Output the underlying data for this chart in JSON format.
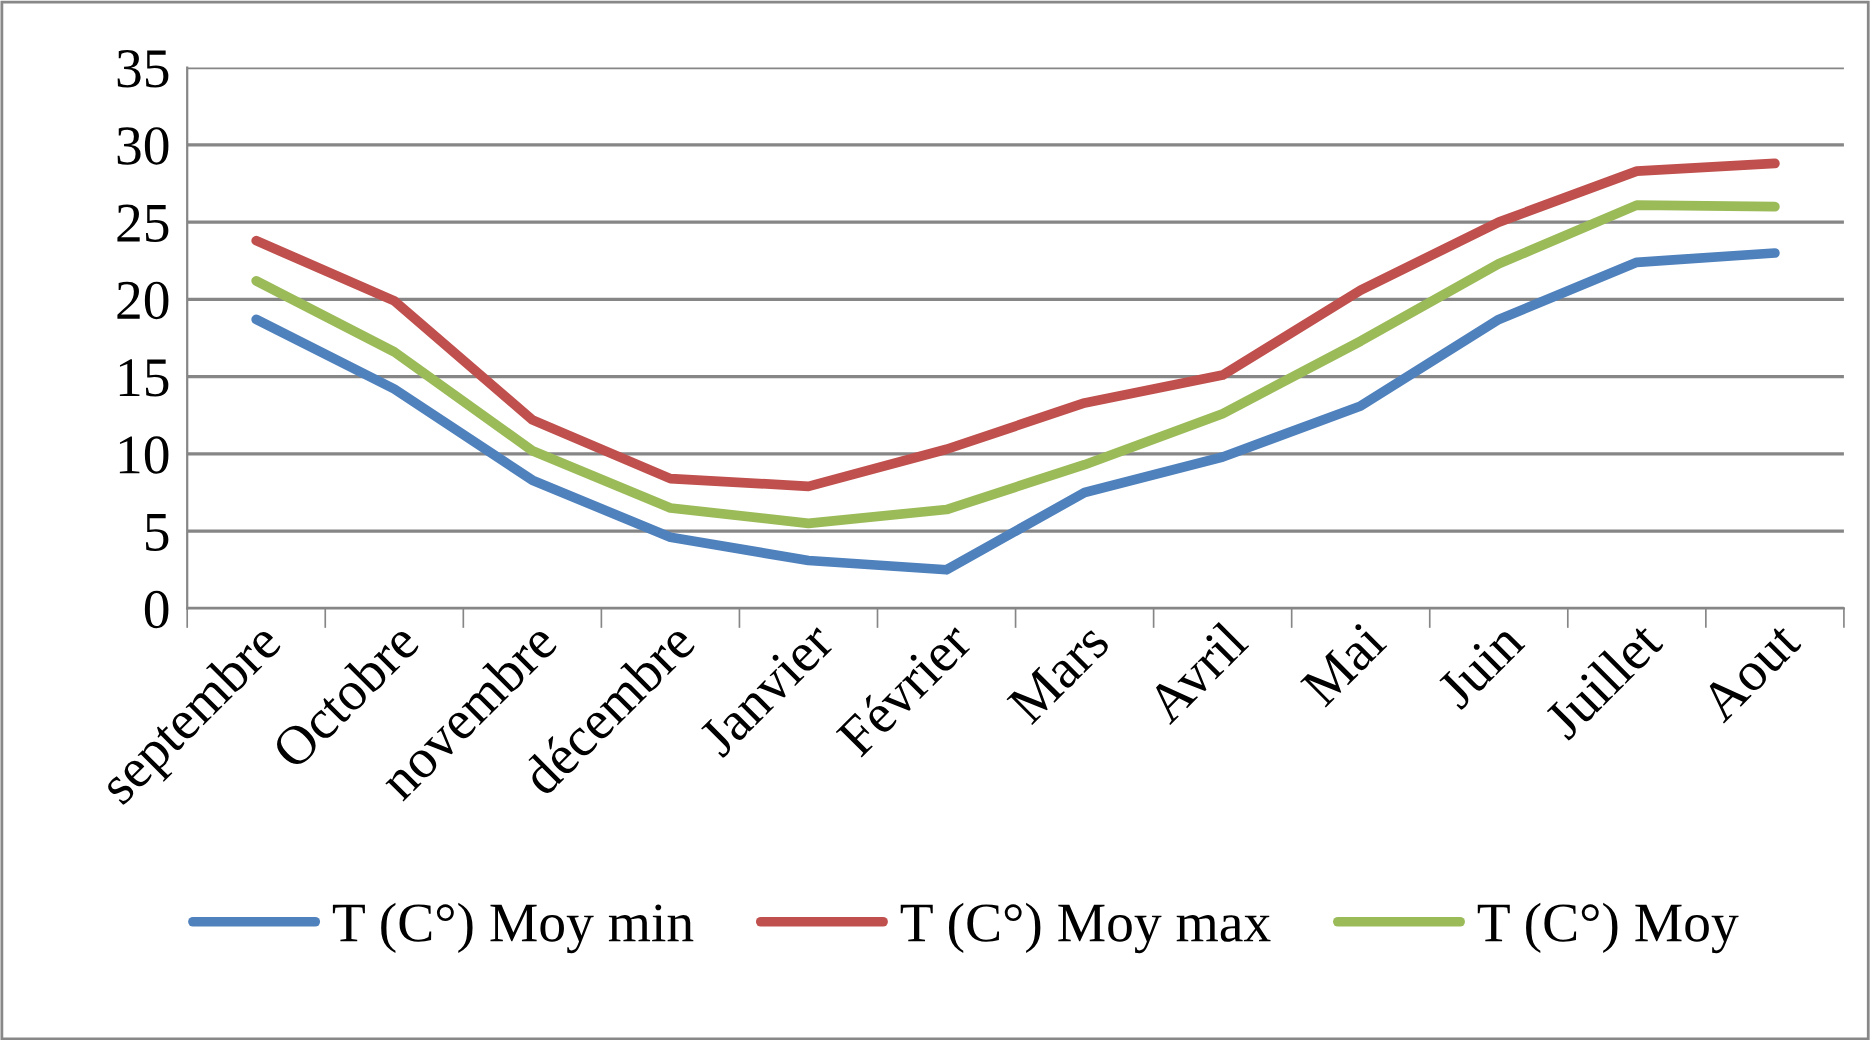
{
  "chart_data": {
    "type": "line",
    "categories": [
      "septembre",
      "Octobre",
      "novembre",
      "décembre",
      "Janvier",
      "Février",
      "Mars",
      "Avril",
      "Mai",
      "Juin",
      "Juillet",
      "Aout"
    ],
    "series": [
      {
        "name": "T (C°) Moy min",
        "color": "#4f81bd",
        "values": [
          18.7,
          14.2,
          8.3,
          4.6,
          3.1,
          2.5,
          7.5,
          9.8,
          13.1,
          18.7,
          22.4,
          23.0
        ]
      },
      {
        "name": "T (C°) Moy max",
        "color": "#c0504d",
        "values": [
          23.8,
          19.9,
          12.2,
          8.4,
          7.9,
          10.3,
          13.3,
          15.1,
          20.6,
          25.0,
          28.3,
          28.8
        ]
      },
      {
        "name": "T (C°) Moy",
        "color": "#9bbb59",
        "values": [
          21.2,
          16.6,
          10.2,
          6.5,
          5.5,
          6.4,
          9.3,
          12.6,
          17.3,
          22.3,
          26.1,
          26.0
        ]
      }
    ],
    "ylim": [
      0,
      35
    ],
    "yticks": [
      0,
      5,
      10,
      15,
      20,
      25,
      30,
      35
    ],
    "grid": "y",
    "legend": "bottom",
    "marker": "none",
    "line_style": "solid"
  }
}
